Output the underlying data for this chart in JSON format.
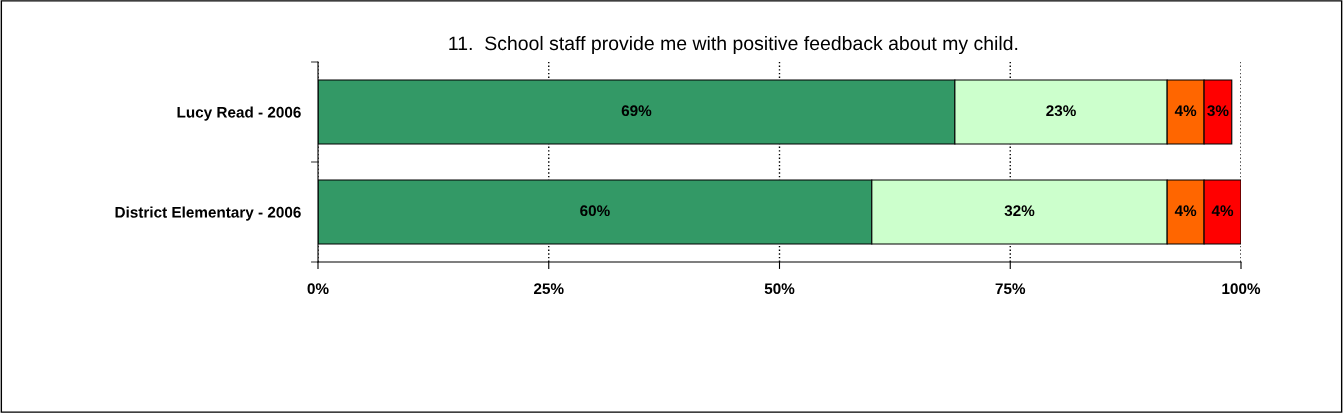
{
  "chart_data": {
    "type": "bar",
    "orientation": "horizontal",
    "stacked": true,
    "title": "11.  School staff provide me with positive feedback about my child.",
    "categories": [
      "Lucy Read - 2006",
      "District Elementary - 2006"
    ],
    "series": [
      {
        "color": "#339966",
        "values": [
          69,
          60
        ],
        "value_labels": [
          "69%",
          "60%"
        ]
      },
      {
        "color": "#ccffcc",
        "values": [
          23,
          32
        ],
        "value_labels": [
          "23%",
          "32%"
        ]
      },
      {
        "color": "#ff6600",
        "values": [
          4,
          4
        ],
        "value_labels": [
          "4%",
          "4%"
        ]
      },
      {
        "color": "#ff0000",
        "values": [
          3,
          4
        ],
        "value_labels": [
          "3%",
          "4%"
        ]
      }
    ],
    "xlim": [
      0,
      100
    ],
    "xticks": [
      {
        "value": 0,
        "label": "0%"
      },
      {
        "value": 25,
        "label": "25%"
      },
      {
        "value": 50,
        "label": "50%"
      },
      {
        "value": 75,
        "label": "75%"
      },
      {
        "value": 100,
        "label": "100%"
      }
    ],
    "grid": "x",
    "line_style": "dotted",
    "legend": false
  }
}
